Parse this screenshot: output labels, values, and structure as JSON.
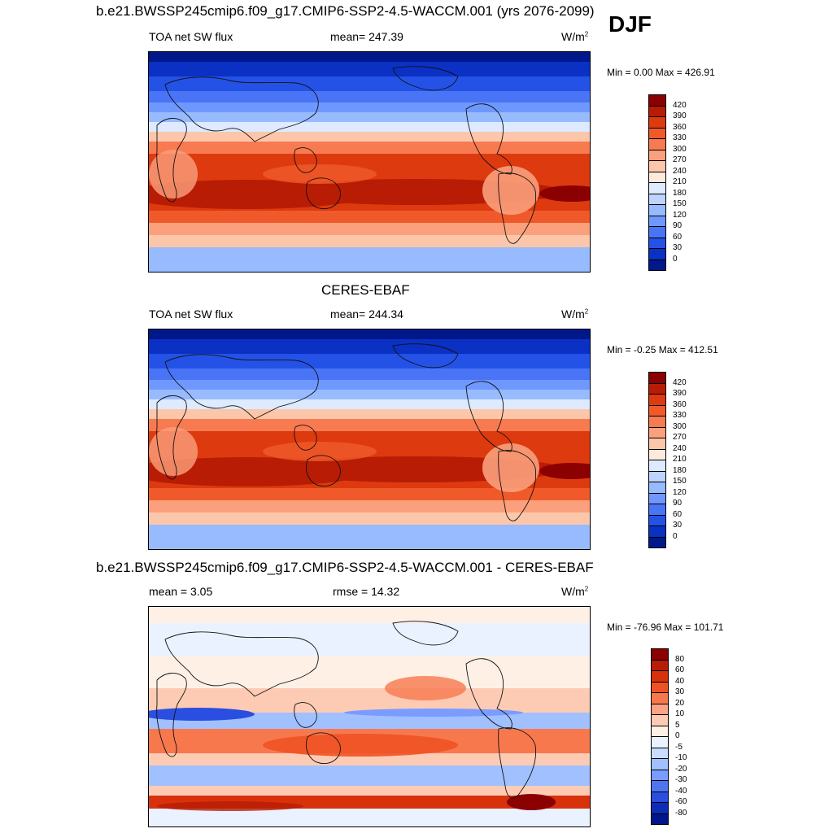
{
  "header": {
    "title": "b.e21.BWSSP245cmip6.f09_g17.CMIP6-SSP2-4.5-WACCM.001 (yrs 2076-2099)",
    "season": "DJF"
  },
  "panels": [
    {
      "id": "model",
      "subtitle": "",
      "left_label": "TOA net SW flux",
      "center_label": "mean= 247.39",
      "units": "W/m",
      "units_sup": "2",
      "minmax": "Min =   0.00 Max = 426.91",
      "colorbar": {
        "labels": [
          "420",
          "390",
          "360",
          "330",
          "300",
          "270",
          "240",
          "210",
          "180",
          "150",
          "120",
          "90",
          "60",
          "30",
          "0"
        ],
        "colors": [
          "#8b0000",
          "#b81c04",
          "#dd3a10",
          "#f05a2a",
          "#f87a50",
          "#fba07c",
          "#fcc6aa",
          "#feeadc",
          "#ddeaff",
          "#bcd4ff",
          "#98baff",
          "#6f98ff",
          "#4a74f6",
          "#2452e6",
          "#0a30c4",
          "#00188a"
        ]
      }
    },
    {
      "id": "obs",
      "subtitle": "CERES-EBAF",
      "left_label": "TOA net SW flux",
      "center_label": "mean= 244.34",
      "units": "W/m",
      "units_sup": "2",
      "minmax": "Min =  -0.25 Max = 412.51",
      "colorbar": {
        "labels": [
          "420",
          "390",
          "360",
          "330",
          "300",
          "270",
          "240",
          "210",
          "180",
          "150",
          "120",
          "90",
          "60",
          "30",
          "0"
        ],
        "colors": [
          "#8b0000",
          "#b81c04",
          "#dd3a10",
          "#f05a2a",
          "#f87a50",
          "#fba07c",
          "#fcc6aa",
          "#feeadc",
          "#ddeaff",
          "#bcd4ff",
          "#98baff",
          "#6f98ff",
          "#4a74f6",
          "#2452e6",
          "#0a30c4",
          "#00188a"
        ]
      }
    },
    {
      "id": "diff",
      "subtitle": "b.e21.BWSSP245cmip6.f09_g17.CMIP6-SSP2-4.5-WACCM.001 - CERES-EBAF",
      "left_label": "mean =   3.05",
      "center_label": "rmse =  14.32",
      "units": "W/m",
      "units_sup": "2",
      "minmax": "Min = -76.96 Max = 101.71",
      "colorbar": {
        "labels": [
          "80",
          "60",
          "40",
          "30",
          "20",
          "10",
          "5",
          "0",
          "-5",
          "-10",
          "-20",
          "-30",
          "-40",
          "-60",
          "-80"
        ],
        "colors": [
          "#8b0000",
          "#b81c04",
          "#d8320c",
          "#ee5224",
          "#f8784e",
          "#fba384",
          "#fdcbb4",
          "#fff0e6",
          "#eaf2ff",
          "#c8dcff",
          "#a0c0ff",
          "#7a9cff",
          "#4e74f0",
          "#2a4ee0",
          "#0e2cba",
          "#00168a"
        ]
      }
    }
  ]
}
